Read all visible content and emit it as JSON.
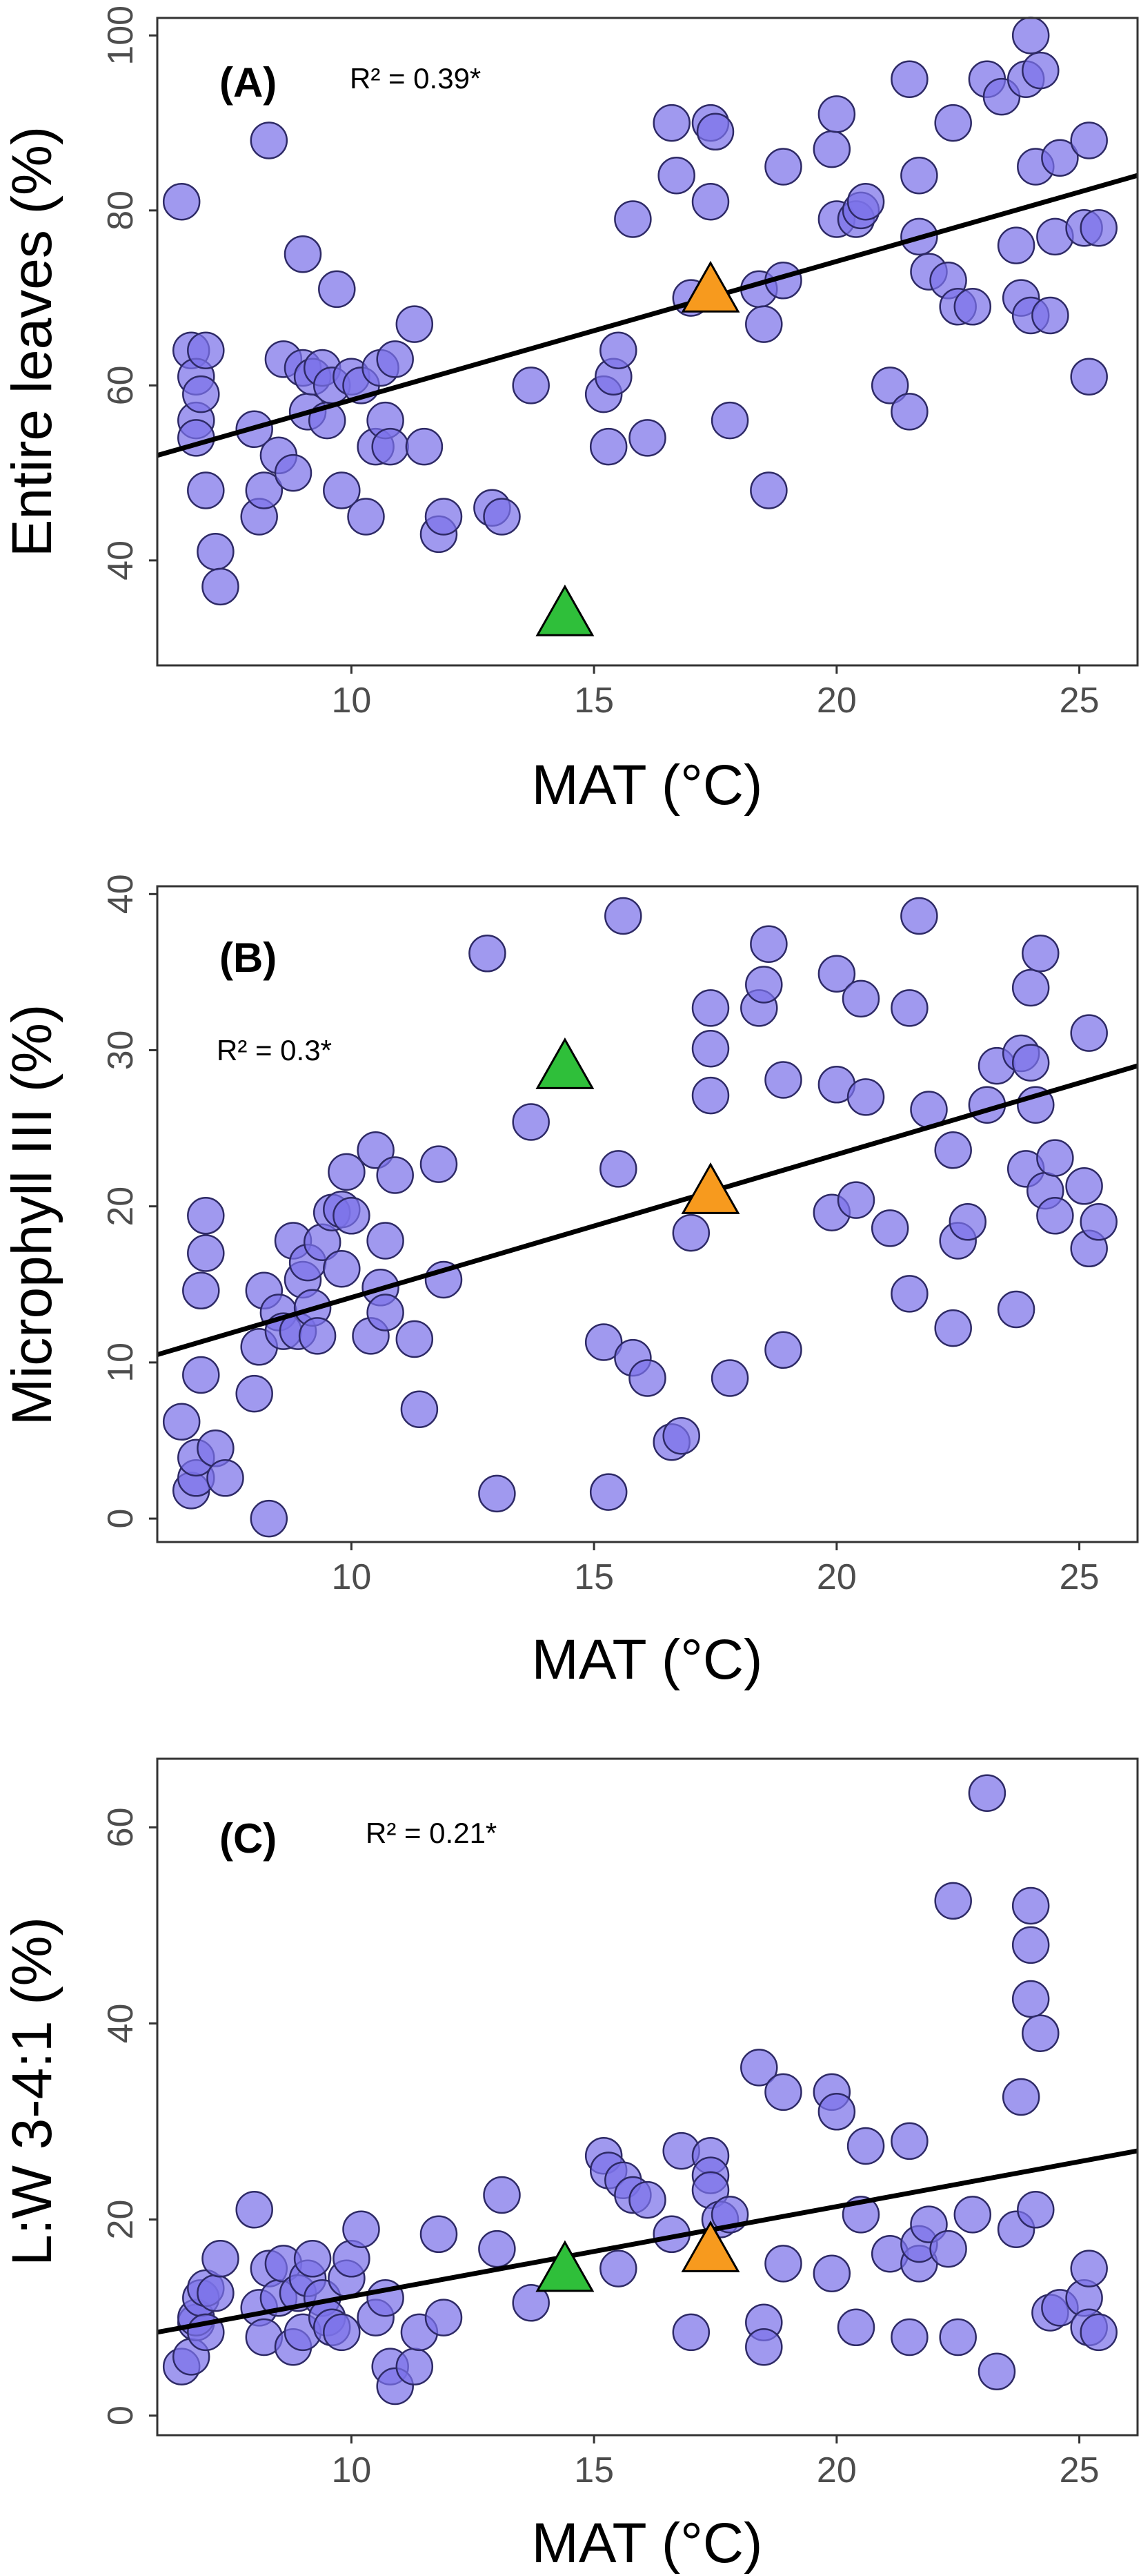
{
  "colors": {
    "points": "#7b72e9",
    "point_stroke": "#2e2a66",
    "triangle_green": "#2fbf3a",
    "triangle_orange": "#f79a1e",
    "trend_line": "#000000",
    "frame": "#333333"
  },
  "chart_data": [
    {
      "type": "scatter",
      "panel_label": "(A)",
      "r2_text": "R² = 0.39*",
      "xlabel": "MAT (°C)",
      "ylabel": "Entire leaves (%)",
      "xlim": [
        6,
        26.2
      ],
      "ylim": [
        28,
        102
      ],
      "xticks": [
        "10",
        "15",
        "20",
        "25"
      ],
      "yticks": [
        "40",
        "60",
        "80",
        "100"
      ],
      "trend": {
        "x": [
          6,
          26.2
        ],
        "y": [
          52,
          84
        ]
      },
      "points": [
        {
          "x": 6.5,
          "y": 81
        },
        {
          "x": 6.7,
          "y": 64
        },
        {
          "x": 6.8,
          "y": 61
        },
        {
          "x": 6.8,
          "y": 56
        },
        {
          "x": 6.8,
          "y": 54
        },
        {
          "x": 6.9,
          "y": 59
        },
        {
          "x": 7.0,
          "y": 64
        },
        {
          "x": 7.0,
          "y": 48
        },
        {
          "x": 7.2,
          "y": 41
        },
        {
          "x": 7.3,
          "y": 37
        },
        {
          "x": 8.0,
          "y": 55
        },
        {
          "x": 8.1,
          "y": 45
        },
        {
          "x": 8.2,
          "y": 48
        },
        {
          "x": 8.3,
          "y": 88
        },
        {
          "x": 8.5,
          "y": 52
        },
        {
          "x": 8.6,
          "y": 63
        },
        {
          "x": 8.8,
          "y": 50
        },
        {
          "x": 9.0,
          "y": 75
        },
        {
          "x": 9.0,
          "y": 62
        },
        {
          "x": 9.1,
          "y": 57
        },
        {
          "x": 9.2,
          "y": 61
        },
        {
          "x": 9.4,
          "y": 62
        },
        {
          "x": 9.5,
          "y": 56
        },
        {
          "x": 9.6,
          "y": 60
        },
        {
          "x": 9.7,
          "y": 71
        },
        {
          "x": 9.8,
          "y": 48
        },
        {
          "x": 10.0,
          "y": 61
        },
        {
          "x": 10.2,
          "y": 60
        },
        {
          "x": 10.3,
          "y": 45
        },
        {
          "x": 10.5,
          "y": 53
        },
        {
          "x": 10.6,
          "y": 62
        },
        {
          "x": 10.7,
          "y": 56
        },
        {
          "x": 10.8,
          "y": 53
        },
        {
          "x": 10.9,
          "y": 63
        },
        {
          "x": 11.3,
          "y": 67
        },
        {
          "x": 11.5,
          "y": 53
        },
        {
          "x": 11.8,
          "y": 43
        },
        {
          "x": 11.9,
          "y": 45
        },
        {
          "x": 12.9,
          "y": 46
        },
        {
          "x": 13.1,
          "y": 45
        },
        {
          "x": 13.7,
          "y": 60
        },
        {
          "x": 15.2,
          "y": 59
        },
        {
          "x": 15.3,
          "y": 53
        },
        {
          "x": 15.4,
          "y": 61
        },
        {
          "x": 15.5,
          "y": 64
        },
        {
          "x": 15.8,
          "y": 79
        },
        {
          "x": 16.1,
          "y": 54
        },
        {
          "x": 16.6,
          "y": 90
        },
        {
          "x": 16.7,
          "y": 84
        },
        {
          "x": 17.0,
          "y": 70
        },
        {
          "x": 17.4,
          "y": 90
        },
        {
          "x": 17.5,
          "y": 89
        },
        {
          "x": 17.4,
          "y": 81
        },
        {
          "x": 17.8,
          "y": 56
        },
        {
          "x": 18.4,
          "y": 71
        },
        {
          "x": 18.5,
          "y": 67
        },
        {
          "x": 18.6,
          "y": 48
        },
        {
          "x": 18.9,
          "y": 72
        },
        {
          "x": 18.9,
          "y": 85
        },
        {
          "x": 19.9,
          "y": 87
        },
        {
          "x": 20.0,
          "y": 91
        },
        {
          "x": 20.0,
          "y": 79
        },
        {
          "x": 20.4,
          "y": 79
        },
        {
          "x": 20.5,
          "y": 80
        },
        {
          "x": 20.6,
          "y": 81
        },
        {
          "x": 21.1,
          "y": 60
        },
        {
          "x": 21.5,
          "y": 95
        },
        {
          "x": 21.5,
          "y": 57
        },
        {
          "x": 21.7,
          "y": 84
        },
        {
          "x": 21.7,
          "y": 77
        },
        {
          "x": 21.9,
          "y": 73
        },
        {
          "x": 22.3,
          "y": 72
        },
        {
          "x": 22.4,
          "y": 90
        },
        {
          "x": 22.5,
          "y": 69
        },
        {
          "x": 22.8,
          "y": 69
        },
        {
          "x": 23.1,
          "y": 95
        },
        {
          "x": 23.4,
          "y": 93
        },
        {
          "x": 23.7,
          "y": 76
        },
        {
          "x": 23.8,
          "y": 70
        },
        {
          "x": 23.9,
          "y": 95
        },
        {
          "x": 24.0,
          "y": 100
        },
        {
          "x": 24.0,
          "y": 68
        },
        {
          "x": 24.1,
          "y": 85
        },
        {
          "x": 24.2,
          "y": 96
        },
        {
          "x": 24.4,
          "y": 68
        },
        {
          "x": 24.5,
          "y": 77
        },
        {
          "x": 24.6,
          "y": 86
        },
        {
          "x": 25.1,
          "y": 78
        },
        {
          "x": 25.2,
          "y": 88
        },
        {
          "x": 25.2,
          "y": 61
        },
        {
          "x": 25.4,
          "y": 78
        }
      ],
      "triangles": [
        {
          "x": 14.4,
          "y": 34,
          "color": "#2fbf3a"
        },
        {
          "x": 17.4,
          "y": 71,
          "color": "#f79a1e"
        }
      ]
    },
    {
      "type": "scatter",
      "panel_label": "(B)",
      "r2_text": "R² = 0.3*",
      "xlabel": "MAT (°C)",
      "ylabel": "Microphyll III (%)",
      "xlim": [
        6,
        26.2
      ],
      "ylim": [
        -1.5,
        40.5
      ],
      "xticks": [
        "10",
        "15",
        "20",
        "25"
      ],
      "yticks": [
        "0",
        "10",
        "20",
        "30",
        "40"
      ],
      "trend": {
        "x": [
          6,
          26.2
        ],
        "y": [
          10.5,
          29
        ]
      },
      "points": [
        {
          "x": 6.5,
          "y": 6.2
        },
        {
          "x": 6.7,
          "y": 1.8
        },
        {
          "x": 6.8,
          "y": 2.6
        },
        {
          "x": 6.8,
          "y": 3.9
        },
        {
          "x": 6.9,
          "y": 9.2
        },
        {
          "x": 6.9,
          "y": 14.6
        },
        {
          "x": 7.0,
          "y": 17.0
        },
        {
          "x": 7.0,
          "y": 19.4
        },
        {
          "x": 7.2,
          "y": 4.5
        },
        {
          "x": 7.4,
          "y": 2.6
        },
        {
          "x": 8.0,
          "y": 8.0
        },
        {
          "x": 8.1,
          "y": 11.0
        },
        {
          "x": 8.2,
          "y": 14.6
        },
        {
          "x": 8.3,
          "y": 0
        },
        {
          "x": 8.5,
          "y": 13.2
        },
        {
          "x": 8.6,
          "y": 12.0
        },
        {
          "x": 8.8,
          "y": 17.8
        },
        {
          "x": 8.9,
          "y": 12.0
        },
        {
          "x": 9.0,
          "y": 15.3
        },
        {
          "x": 9.1,
          "y": 16.4
        },
        {
          "x": 9.2,
          "y": 13.5
        },
        {
          "x": 9.3,
          "y": 11.7
        },
        {
          "x": 9.4,
          "y": 17.7
        },
        {
          "x": 9.6,
          "y": 19.6
        },
        {
          "x": 9.8,
          "y": 16.0
        },
        {
          "x": 9.8,
          "y": 19.8
        },
        {
          "x": 9.9,
          "y": 22.2
        },
        {
          "x": 10.0,
          "y": 19.4
        },
        {
          "x": 10.4,
          "y": 11.7
        },
        {
          "x": 10.5,
          "y": 23.6
        },
        {
          "x": 10.6,
          "y": 14.8
        },
        {
          "x": 10.7,
          "y": 13.2
        },
        {
          "x": 10.7,
          "y": 17.8
        },
        {
          "x": 10.9,
          "y": 22.0
        },
        {
          "x": 11.3,
          "y": 11.5
        },
        {
          "x": 11.4,
          "y": 7.0
        },
        {
          "x": 11.8,
          "y": 22.7
        },
        {
          "x": 11.9,
          "y": 15.3
        },
        {
          "x": 12.8,
          "y": 36.2
        },
        {
          "x": 13.0,
          "y": 1.6
        },
        {
          "x": 13.7,
          "y": 25.4
        },
        {
          "x": 15.2,
          "y": 11.3
        },
        {
          "x": 15.3,
          "y": 1.7
        },
        {
          "x": 15.5,
          "y": 22.4
        },
        {
          "x": 15.6,
          "y": 38.6
        },
        {
          "x": 15.8,
          "y": 10.3
        },
        {
          "x": 16.1,
          "y": 9.0
        },
        {
          "x": 16.6,
          "y": 4.9
        },
        {
          "x": 16.8,
          "y": 5.3
        },
        {
          "x": 17.0,
          "y": 18.3
        },
        {
          "x": 17.4,
          "y": 32.7
        },
        {
          "x": 17.4,
          "y": 30.1
        },
        {
          "x": 17.4,
          "y": 27.1
        },
        {
          "x": 17.8,
          "y": 9.0
        },
        {
          "x": 18.4,
          "y": 32.7
        },
        {
          "x": 18.5,
          "y": 34.2
        },
        {
          "x": 18.6,
          "y": 36.8
        },
        {
          "x": 18.9,
          "y": 28.1
        },
        {
          "x": 18.9,
          "y": 10.8
        },
        {
          "x": 19.9,
          "y": 19.6
        },
        {
          "x": 20.0,
          "y": 34.9
        },
        {
          "x": 20.0,
          "y": 27.8
        },
        {
          "x": 20.4,
          "y": 20.4
        },
        {
          "x": 20.5,
          "y": 33.3
        },
        {
          "x": 20.6,
          "y": 27.0
        },
        {
          "x": 21.1,
          "y": 18.6
        },
        {
          "x": 21.5,
          "y": 32.7
        },
        {
          "x": 21.5,
          "y": 14.4
        },
        {
          "x": 21.7,
          "y": 38.6
        },
        {
          "x": 21.9,
          "y": 26.2
        },
        {
          "x": 22.4,
          "y": 23.6
        },
        {
          "x": 22.4,
          "y": 12.2
        },
        {
          "x": 22.5,
          "y": 17.8
        },
        {
          "x": 22.7,
          "y": 19.0
        },
        {
          "x": 23.1,
          "y": 26.5
        },
        {
          "x": 23.3,
          "y": 29.0
        },
        {
          "x": 23.7,
          "y": 13.4
        },
        {
          "x": 23.8,
          "y": 29.8
        },
        {
          "x": 23.9,
          "y": 22.4
        },
        {
          "x": 24.0,
          "y": 34.0
        },
        {
          "x": 24.0,
          "y": 29.2
        },
        {
          "x": 24.1,
          "y": 26.5
        },
        {
          "x": 24.2,
          "y": 36.2
        },
        {
          "x": 24.3,
          "y": 21.0
        },
        {
          "x": 24.5,
          "y": 23.1
        },
        {
          "x": 24.5,
          "y": 19.4
        },
        {
          "x": 25.1,
          "y": 21.3
        },
        {
          "x": 25.2,
          "y": 17.3
        },
        {
          "x": 25.2,
          "y": 31.1
        },
        {
          "x": 25.4,
          "y": 19.0
        }
      ],
      "triangles": [
        {
          "x": 14.4,
          "y": 29.0,
          "color": "#2fbf3a"
        },
        {
          "x": 17.4,
          "y": 21.0,
          "color": "#f79a1e"
        }
      ]
    },
    {
      "type": "scatter",
      "panel_label": "(C)",
      "r2_text": "R² = 0.21*",
      "xlabel": "MAT (°C)",
      "ylabel": "L:W 3-4:1 (%)",
      "xlim": [
        6,
        26.2
      ],
      "ylim": [
        -2,
        67
      ],
      "xticks": [
        "10",
        "15",
        "20",
        "25"
      ],
      "yticks": [
        "0",
        "20",
        "40",
        "60"
      ],
      "trend": {
        "x": [
          6,
          26.2
        ],
        "y": [
          8.5,
          27
        ]
      },
      "points": [
        {
          "x": 6.5,
          "y": 5.0
        },
        {
          "x": 6.7,
          "y": 6.0
        },
        {
          "x": 6.8,
          "y": 9.5
        },
        {
          "x": 6.8,
          "y": 10.0
        },
        {
          "x": 6.9,
          "y": 12.0
        },
        {
          "x": 7.0,
          "y": 13.0
        },
        {
          "x": 7.0,
          "y": 8.5
        },
        {
          "x": 7.2,
          "y": 12.5
        },
        {
          "x": 7.3,
          "y": 16.0
        },
        {
          "x": 8.0,
          "y": 21.0
        },
        {
          "x": 8.1,
          "y": 11.0
        },
        {
          "x": 8.2,
          "y": 8.0
        },
        {
          "x": 8.3,
          "y": 15.0
        },
        {
          "x": 8.5,
          "y": 12.0
        },
        {
          "x": 8.6,
          "y": 15.5
        },
        {
          "x": 8.8,
          "y": 7.0
        },
        {
          "x": 8.9,
          "y": 12.5
        },
        {
          "x": 9.0,
          "y": 8.5
        },
        {
          "x": 9.1,
          "y": 14.0
        },
        {
          "x": 9.2,
          "y": 16.0
        },
        {
          "x": 9.4,
          "y": 12.0
        },
        {
          "x": 9.5,
          "y": 10.0
        },
        {
          "x": 9.6,
          "y": 9.0
        },
        {
          "x": 9.8,
          "y": 8.5
        },
        {
          "x": 9.9,
          "y": 14.0
        },
        {
          "x": 10.0,
          "y": 16.0
        },
        {
          "x": 10.2,
          "y": 19.0
        },
        {
          "x": 10.5,
          "y": 10.0
        },
        {
          "x": 10.7,
          "y": 12.0
        },
        {
          "x": 10.8,
          "y": 5.0
        },
        {
          "x": 10.9,
          "y": 3.0
        },
        {
          "x": 11.3,
          "y": 5.0
        },
        {
          "x": 11.4,
          "y": 8.5
        },
        {
          "x": 11.8,
          "y": 18.5
        },
        {
          "x": 11.9,
          "y": 10.0
        },
        {
          "x": 13.0,
          "y": 17.0
        },
        {
          "x": 13.1,
          "y": 22.5
        },
        {
          "x": 13.7,
          "y": 11.5
        },
        {
          "x": 15.2,
          "y": 26.5
        },
        {
          "x": 15.3,
          "y": 25.0
        },
        {
          "x": 15.5,
          "y": 15.0
        },
        {
          "x": 15.6,
          "y": 24.0
        },
        {
          "x": 15.8,
          "y": 22.5
        },
        {
          "x": 16.1,
          "y": 22.0
        },
        {
          "x": 16.6,
          "y": 18.5
        },
        {
          "x": 16.8,
          "y": 27.0
        },
        {
          "x": 17.0,
          "y": 8.5
        },
        {
          "x": 17.4,
          "y": 26.5
        },
        {
          "x": 17.4,
          "y": 24.5
        },
        {
          "x": 17.4,
          "y": 23.0
        },
        {
          "x": 17.6,
          "y": 20.0
        },
        {
          "x": 17.8,
          "y": 20.5
        },
        {
          "x": 18.4,
          "y": 35.5
        },
        {
          "x": 18.5,
          "y": 9.5
        },
        {
          "x": 18.5,
          "y": 7.0
        },
        {
          "x": 18.9,
          "y": 15.5
        },
        {
          "x": 18.9,
          "y": 33.0
        },
        {
          "x": 19.9,
          "y": 14.5
        },
        {
          "x": 19.9,
          "y": 33.0
        },
        {
          "x": 20.0,
          "y": 31.0
        },
        {
          "x": 20.4,
          "y": 9.0
        },
        {
          "x": 20.5,
          "y": 20.5
        },
        {
          "x": 20.6,
          "y": 27.5
        },
        {
          "x": 21.1,
          "y": 16.5
        },
        {
          "x": 21.5,
          "y": 28.0
        },
        {
          "x": 21.5,
          "y": 8.0
        },
        {
          "x": 21.7,
          "y": 15.5
        },
        {
          "x": 21.7,
          "y": 17.5
        },
        {
          "x": 21.9,
          "y": 19.5
        },
        {
          "x": 22.3,
          "y": 17.0
        },
        {
          "x": 22.4,
          "y": 52.5
        },
        {
          "x": 22.5,
          "y": 8.0
        },
        {
          "x": 22.8,
          "y": 20.5
        },
        {
          "x": 23.1,
          "y": 63.5
        },
        {
          "x": 23.3,
          "y": 4.5
        },
        {
          "x": 23.7,
          "y": 19.0
        },
        {
          "x": 23.8,
          "y": 32.5
        },
        {
          "x": 24.0,
          "y": 52.0
        },
        {
          "x": 24.0,
          "y": 48.0
        },
        {
          "x": 24.0,
          "y": 42.5
        },
        {
          "x": 24.1,
          "y": 21.0
        },
        {
          "x": 24.2,
          "y": 39.0
        },
        {
          "x": 24.4,
          "y": 10.5
        },
        {
          "x": 24.6,
          "y": 11.0
        },
        {
          "x": 25.1,
          "y": 12.0
        },
        {
          "x": 25.2,
          "y": 15.0
        },
        {
          "x": 25.2,
          "y": 9.0
        },
        {
          "x": 25.4,
          "y": 8.5
        }
      ],
      "triangles": [
        {
          "x": 14.4,
          "y": 15.0,
          "color": "#2fbf3a"
        },
        {
          "x": 17.4,
          "y": 17.0,
          "color": "#f79a1e"
        }
      ]
    }
  ]
}
